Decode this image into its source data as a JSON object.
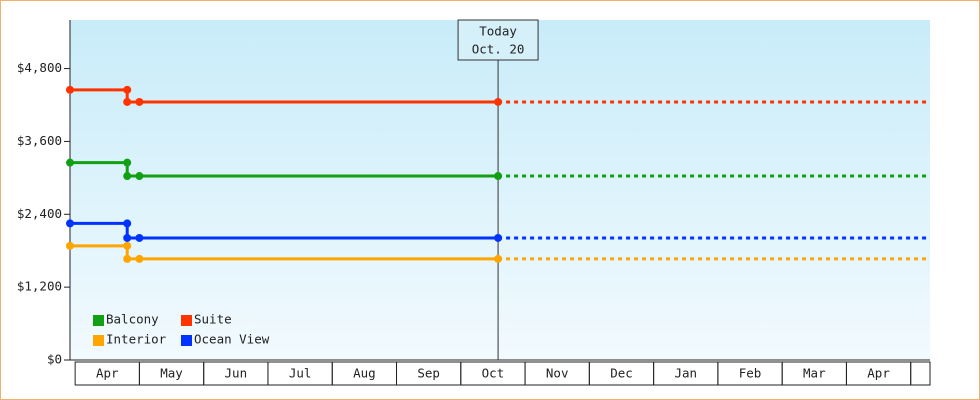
{
  "chart_data": {
    "type": "line",
    "x": [
      -0.08,
      0.81,
      0.81,
      1.0,
      6.58,
      13.3
    ],
    "xlim": [
      -0.08,
      13.3
    ],
    "months": [
      "Apr",
      "May",
      "Jun",
      "Jul",
      "Aug",
      "Sep",
      "Oct",
      "Nov",
      "Dec",
      "Jan",
      "Feb",
      "Mar",
      "Apr"
    ],
    "ylim": [
      0,
      5600
    ],
    "yticks": [
      {
        "value": 0,
        "label": "$0"
      },
      {
        "value": 1200,
        "label": "$1,200"
      },
      {
        "value": 2400,
        "label": "$2,400"
      },
      {
        "value": 3600,
        "label": "$3,600"
      },
      {
        "value": 4800,
        "label": "$4,800"
      }
    ],
    "today": {
      "x": 6.58,
      "label": "Today",
      "date": "Oct. 20"
    },
    "legend": "lower left",
    "series": [
      {
        "name": "Balcony",
        "color": "#11a011",
        "values": [
          3250,
          3250,
          3030,
          3030,
          3030,
          3030
        ]
      },
      {
        "name": "Suite",
        "color": "#ff3300",
        "values": [
          4450,
          4450,
          4250,
          4250,
          4250,
          4250
        ]
      },
      {
        "name": "Interior",
        "color": "#ffa500",
        "values": [
          1880,
          1880,
          1665,
          1665,
          1665,
          1665
        ]
      },
      {
        "name": "Ocean View",
        "color": "#0033ff",
        "values": [
          2250,
          2250,
          2010,
          2010,
          2010,
          2010
        ]
      }
    ]
  }
}
